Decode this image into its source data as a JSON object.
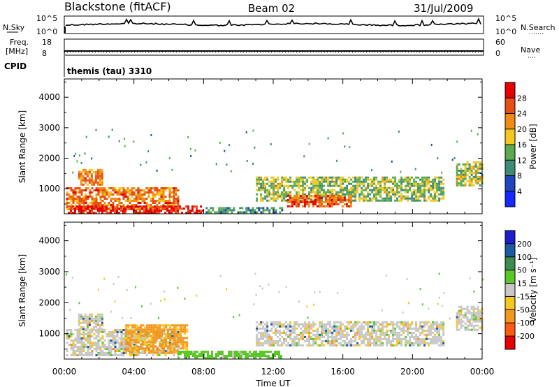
{
  "header": {
    "station": "Blackstone (fitACF)",
    "beam": "Beam 02",
    "date": "31/Jul/2009"
  },
  "summary": {
    "nsky_label": "N.Sky",
    "nsearch_label": "N.Search",
    "freq_label_1": "Freq.",
    "freq_label_2": "[MHz]",
    "cpid_label": "CPID",
    "nave_label": "Nave",
    "noise_ticks": [
      "10^5",
      "10^0"
    ],
    "freq_ticks": [
      "18",
      "8"
    ],
    "nave_ticks": [
      "60",
      "0"
    ],
    "cpid_text": "themis (tau) 3310"
  },
  "axes": {
    "ylabel": "Slant Range [km]",
    "xlabel": "Time UT",
    "y_ticks": [
      "1000",
      "2000",
      "3000",
      "4000"
    ],
    "x_ticks": [
      "00:00",
      "04:00",
      "08:00",
      "12:00",
      "16:00",
      "20:00",
      "00:00"
    ]
  },
  "colorbars": {
    "power_label": "Power [dB]",
    "power_ticks": [
      "4",
      "8",
      "12",
      "16",
      "20",
      "24",
      "28"
    ],
    "power_colors": [
      "#1428ff",
      "#1e46be",
      "#3c8c78",
      "#5aaa50",
      "#f5c81e",
      "#f08c14",
      "#e65014",
      "#e60000"
    ],
    "velocity_label": "Velocity [m s⁻¹]",
    "velocity_ticks": [
      "200",
      "100",
      "50",
      "15",
      "-15",
      "-50",
      "-100",
      "-200"
    ],
    "velocity_colors": [
      "#1e1ecd",
      "#1e5aa0",
      "#3c8c50",
      "#5ac828",
      "#c8c8c8",
      "#f5c81e",
      "#f5961e",
      "#ff5a14",
      "#e60000"
    ]
  },
  "chart_data": [
    {
      "type": "heatmap",
      "title": "Power",
      "xlabel": "Time UT",
      "ylabel": "Slant Range [km]",
      "colorbar_label": "Power [dB]",
      "xlim": [
        0,
        24
      ],
      "ylim": [
        180,
        4600
      ],
      "clim": [
        0,
        30
      ],
      "bands": [
        {
          "t_start": 0.1,
          "t_end": 6.5,
          "range_low": 300,
          "range_high": 1050,
          "power": 22
        },
        {
          "t_start": 0.2,
          "t_end": 8.0,
          "range_low": 200,
          "range_high": 450,
          "power": 28
        },
        {
          "t_start": 0.8,
          "t_end": 2.2,
          "range_low": 1150,
          "range_high": 1650,
          "power": 22
        },
        {
          "t_start": 8.0,
          "t_end": 12.5,
          "range_low": 200,
          "range_high": 400,
          "power": 10
        },
        {
          "t_start": 11.0,
          "t_end": 21.8,
          "range_low": 600,
          "range_high": 1400,
          "power": 14
        },
        {
          "t_start": 12.8,
          "t_end": 16.5,
          "range_low": 450,
          "range_high": 800,
          "power": 24
        },
        {
          "t_start": 22.5,
          "t_end": 24.0,
          "range_low": 1100,
          "range_high": 1900,
          "power": 15
        }
      ]
    },
    {
      "type": "heatmap",
      "title": "Velocity",
      "xlabel": "Time UT",
      "ylabel": "Slant Range [km]",
      "colorbar_label": "Velocity [m s⁻¹]",
      "xlim": [
        0,
        24
      ],
      "ylim": [
        180,
        4600
      ],
      "clim": [
        -250,
        250
      ],
      "bands": [
        {
          "t_start": 0.1,
          "t_end": 6.5,
          "range_low": 300,
          "range_high": 1150,
          "velocity": 0
        },
        {
          "t_start": 0.8,
          "t_end": 2.2,
          "range_low": 1150,
          "range_high": 1650,
          "velocity": 0
        },
        {
          "t_start": 3.5,
          "t_end": 7.0,
          "range_low": 400,
          "range_high": 1300,
          "velocity": -60
        },
        {
          "t_start": 6.5,
          "t_end": 12.5,
          "range_low": 200,
          "range_high": 450,
          "velocity": 30
        },
        {
          "t_start": 11.0,
          "t_end": 21.8,
          "range_low": 600,
          "range_high": 1400,
          "velocity": 0
        },
        {
          "t_start": 22.5,
          "t_end": 24.0,
          "range_low": 1100,
          "range_high": 1900,
          "velocity": 0
        }
      ]
    }
  ]
}
